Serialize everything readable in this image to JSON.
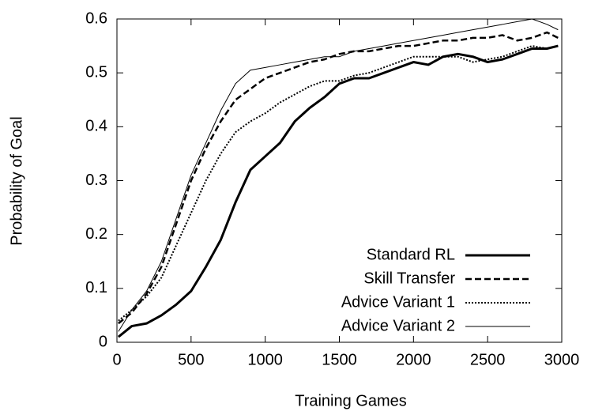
{
  "chart_data": {
    "type": "line",
    "xlabel": "Training Games",
    "ylabel": "Probability of Goal",
    "x": [
      10,
      100,
      200,
      300,
      400,
      500,
      600,
      700,
      800,
      900,
      1000,
      1100,
      1200,
      1300,
      1400,
      1500,
      1600,
      1700,
      1800,
      1900,
      2000,
      2100,
      2200,
      2300,
      2400,
      2500,
      2600,
      2700,
      2800,
      2900,
      2975
    ],
    "series": [
      {
        "name": "Standard RL",
        "color": "#000000",
        "width": 3,
        "dash": "none",
        "values": [
          0.01,
          0.03,
          0.035,
          0.05,
          0.07,
          0.095,
          0.14,
          0.19,
          0.26,
          0.32,
          0.345,
          0.37,
          0.41,
          0.435,
          0.455,
          0.48,
          0.49,
          0.49,
          0.5,
          0.51,
          0.52,
          0.515,
          0.53,
          0.535,
          0.53,
          0.52,
          0.525,
          0.535,
          0.545,
          0.545,
          0.55
        ]
      },
      {
        "name": "Skill Transfer",
        "color": "#000000",
        "width": 2.5,
        "dash": "8 4",
        "values": [
          0.035,
          0.055,
          0.09,
          0.14,
          0.22,
          0.3,
          0.36,
          0.41,
          0.45,
          0.47,
          0.49,
          0.5,
          0.51,
          0.52,
          0.525,
          0.535,
          0.54,
          0.54,
          0.545,
          0.55,
          0.55,
          0.555,
          0.56,
          0.56,
          0.565,
          0.565,
          0.57,
          0.56,
          0.565,
          0.575,
          0.565
        ]
      },
      {
        "name": "Advice Variant 1",
        "color": "#000000",
        "width": 2,
        "dash": "2 2",
        "values": [
          0.04,
          0.06,
          0.085,
          0.12,
          0.18,
          0.24,
          0.3,
          0.35,
          0.39,
          0.41,
          0.425,
          0.445,
          0.46,
          0.475,
          0.485,
          0.485,
          0.495,
          0.5,
          0.51,
          0.52,
          0.53,
          0.53,
          0.53,
          0.53,
          0.52,
          0.525,
          0.53,
          0.54,
          0.55,
          0.545,
          0.55
        ]
      },
      {
        "name": "Advice Variant 2",
        "color": "#000000",
        "width": 1,
        "dash": "none",
        "values": [
          0.02,
          0.06,
          0.095,
          0.15,
          0.23,
          0.31,
          0.37,
          0.43,
          0.48,
          0.505,
          0.51,
          0.515,
          0.52,
          0.525,
          0.53,
          0.53,
          0.54,
          0.545,
          0.55,
          0.555,
          0.56,
          0.565,
          0.57,
          0.575,
          0.58,
          0.585,
          0.59,
          0.595,
          0.6,
          0.59,
          0.58
        ]
      }
    ],
    "xlim": [
      0,
      3000
    ],
    "xticks": [
      0,
      500,
      1000,
      1500,
      2000,
      2500,
      3000
    ],
    "ylim": [
      0,
      0.6
    ],
    "yticks": [
      0,
      0.1,
      0.2,
      0.3,
      0.4,
      0.5,
      0.6
    ],
    "legend": "lower right",
    "grid": false
  }
}
